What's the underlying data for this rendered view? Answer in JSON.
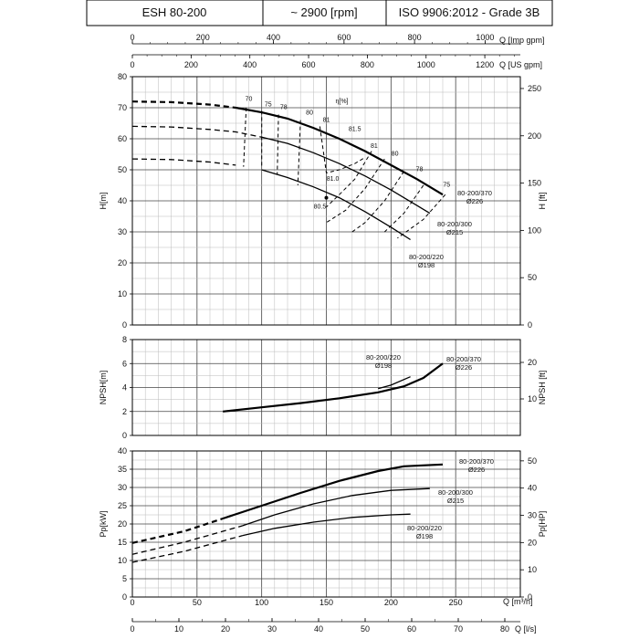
{
  "header": {
    "model": "ESH 80-200",
    "speed": "~ 2900 [rpm]",
    "standard": "ISO 9906:2012 - Grade 3B"
  },
  "chart_data": [
    {
      "id": "head",
      "type": "line",
      "ylabel": "H[m]",
      "ylabel_right": "H [ft]",
      "ylim": [
        0,
        80
      ],
      "yticks": [
        "0",
        "10",
        "20",
        "30",
        "40",
        "50",
        "60",
        "70",
        "80"
      ],
      "ylim_right": [
        0,
        262.5
      ],
      "yticks_right": [
        "0",
        "50",
        "100",
        "150",
        "200",
        "250"
      ],
      "top_axis_us": {
        "label": "Q [US gpm]",
        "ticks": [
          "0",
          "200",
          "400",
          "600",
          "800",
          "1000",
          "1200"
        ]
      },
      "top_axis_imp": {
        "label": "Q [Imp gpm]",
        "ticks": [
          "0",
          "200",
          "400",
          "600",
          "800",
          "1000"
        ]
      },
      "xlim": [
        0,
        300
      ],
      "grid": true,
      "efficiency_label": "η[%]",
      "series": [
        {
          "name": "80-200/370",
          "label2": "Ø226",
          "x": [
            0,
            30,
            60,
            80,
            100,
            120,
            140,
            160,
            180,
            200,
            220,
            240
          ],
          "y": [
            72,
            71.8,
            71,
            70,
            68.5,
            66.5,
            63.5,
            60,
            56,
            51.5,
            47,
            42
          ],
          "solid_from": 80
        },
        {
          "name": "80-200/300",
          "label2": "Ø215",
          "x": [
            0,
            30,
            60,
            80,
            100,
            120,
            140,
            160,
            180,
            200,
            220,
            230
          ],
          "y": [
            64,
            63.8,
            63,
            62.2,
            60.5,
            58.5,
            55.5,
            52,
            48,
            43.5,
            38.5,
            36
          ],
          "solid_from": 100
        },
        {
          "name": "80-200/220",
          "label2": "Ø198",
          "x": [
            0,
            30,
            60,
            80,
            100,
            120,
            140,
            160,
            180,
            200,
            215
          ],
          "y": [
            53.5,
            53.3,
            52.5,
            51.5,
            50,
            47.5,
            44.5,
            41,
            36.5,
            31.5,
            27.5
          ],
          "solid_from": 85
        }
      ],
      "efficiency_labels": [
        {
          "text": "70",
          "x": 90,
          "y": 72.2
        },
        {
          "text": "75",
          "x": 105,
          "y": 70.5
        },
        {
          "text": "78",
          "x": 117,
          "y": 69.5
        },
        {
          "text": "80",
          "x": 137,
          "y": 67.8
        },
        {
          "text": "81",
          "x": 150,
          "y": 65.5
        },
        {
          "text": "81.5",
          "x": 172,
          "y": 62.5
        },
        {
          "text": "81",
          "x": 187,
          "y": 57
        },
        {
          "text": "80",
          "x": 203,
          "y": 54.5
        },
        {
          "text": "78",
          "x": 222,
          "y": 49.5
        },
        {
          "text": "75",
          "x": 243,
          "y": 44.5
        },
        {
          "text": "81.0",
          "x": 155,
          "y": 46.5
        },
        {
          "text": "80.5",
          "x": 145,
          "y": 37.5
        }
      ]
    },
    {
      "id": "npsh",
      "type": "line",
      "ylabel": "NPSH[m]",
      "ylabel_right": "NPSH [ft]",
      "ylim": [
        0,
        8
      ],
      "yticks": [
        "0",
        "2",
        "4",
        "6",
        "8"
      ],
      "ylim_right": [
        0,
        26.25
      ],
      "yticks_right": [
        "10",
        "20"
      ],
      "xlim": [
        0,
        300
      ],
      "grid": true,
      "series": [
        {
          "name": "80-200/370",
          "label2": "Ø226",
          "x": [
            70,
            100,
            130,
            160,
            190,
            210,
            225,
            240
          ],
          "y": [
            2.0,
            2.35,
            2.7,
            3.1,
            3.6,
            4.1,
            4.8,
            6.0
          ]
        },
        {
          "name": "80-200/220",
          "label2": "Ø198",
          "x": [
            190,
            200,
            215
          ],
          "y": [
            3.9,
            4.2,
            4.9
          ]
        }
      ]
    },
    {
      "id": "power",
      "type": "line",
      "ylabel": "Pp[kW]",
      "ylabel_right": "Pp[HP]",
      "ylim": [
        0,
        40
      ],
      "yticks": [
        "0",
        "5",
        "10",
        "15",
        "20",
        "25",
        "30",
        "35",
        "40"
      ],
      "ylim_right": [
        0,
        53.64
      ],
      "yticks_right": [
        "0",
        "10",
        "20",
        "30",
        "40",
        "50"
      ],
      "xlabel": "Q [m³/h]",
      "xticks": [
        "0",
        "50",
        "100",
        "150",
        "200",
        "250"
      ],
      "xlim": [
        0,
        300
      ],
      "bottom_axis_ls": {
        "label": "Q [l/s]",
        "ticks": [
          "0",
          "10",
          "20",
          "30",
          "40",
          "50",
          "60",
          "70",
          "80"
        ]
      },
      "grid": true,
      "series": [
        {
          "name": "80-200/370",
          "label2": "Ø226",
          "x": [
            0,
            40,
            70,
            100,
            130,
            160,
            190,
            210,
            240
          ],
          "y": [
            14.8,
            18,
            21.5,
            25,
            28.5,
            31.8,
            34.5,
            35.8,
            36.3
          ],
          "solid_from": 70
        },
        {
          "name": "80-200/300",
          "label2": "Ø215",
          "x": [
            0,
            40,
            85,
            110,
            140,
            170,
            200,
            230
          ],
          "y": [
            11.7,
            15,
            19.5,
            22.5,
            25.5,
            27.8,
            29.2,
            29.7
          ],
          "solid_from": 85
        },
        {
          "name": "80-200/220",
          "label2": "Ø198",
          "x": [
            0,
            40,
            85,
            110,
            140,
            170,
            200,
            215
          ],
          "y": [
            9.5,
            12.5,
            16.8,
            18.8,
            20.5,
            21.8,
            22.5,
            22.7
          ],
          "solid_from": 85
        }
      ]
    }
  ]
}
